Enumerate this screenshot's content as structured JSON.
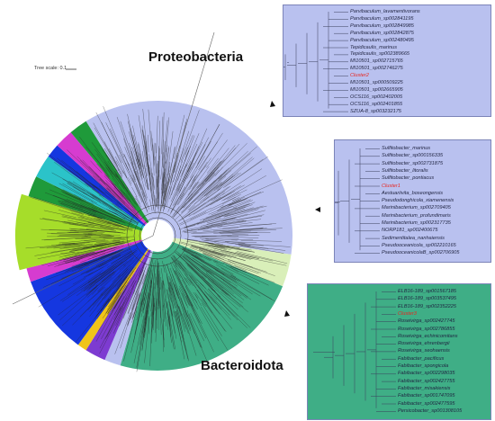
{
  "labels": {
    "top_clade": "Proteobacteria",
    "bottom_clade": "Bacteroidota",
    "tree_scale": "Tree scale: 0.1"
  },
  "colors": {
    "proteobacteria": "#b9c1ef",
    "bacteroidota": "#3fae86",
    "lime": "#a6dd2a",
    "blue": "#1537e0",
    "teal": "#2bc3c9",
    "green": "#1f9a3a",
    "magenta": "#d63cd0",
    "purple": "#7d3bd1",
    "yellow": "#f0c419",
    "pale_green": "#d9efb9",
    "highlight": "#e8261f"
  },
  "panels": {
    "proteobacteria": {
      "color": "#b9c1ef",
      "leaves": [
        {
          "name": "Parvibaculum_lavamentivorans",
          "highlight": false
        },
        {
          "name": "Parvibaculum_sp002841195",
          "highlight": false
        },
        {
          "name": "Parvibaculum_sp002849985",
          "highlight": false
        },
        {
          "name": "Parvibaculum_sp002842875",
          "highlight": false
        },
        {
          "name": "Parvibaculum_sp002480495",
          "highlight": false
        },
        {
          "name": "Tepidicaulis_marinus",
          "highlight": false
        },
        {
          "name": "Tepidicaulis_sp002389665",
          "highlight": false
        },
        {
          "name": "MI10501_sp002715765",
          "highlight": false
        },
        {
          "name": "MI10501_sp002746275",
          "highlight": false
        },
        {
          "name": "Cluster2",
          "highlight": true
        },
        {
          "name": "MI10501_sp000509225",
          "highlight": false
        },
        {
          "name": "MI10501_sp002665905",
          "highlight": false
        },
        {
          "name": "OCS116_sp002402005",
          "highlight": false
        },
        {
          "name": "OCS116_sp002401855",
          "highlight": false
        },
        {
          "name": "SZUA-8_sp003232175",
          "highlight": false
        }
      ]
    },
    "middle": {
      "color": "#b9c1ef",
      "leaves": [
        {
          "name": "Sulfitobacter_marinus",
          "highlight": false
        },
        {
          "name": "Sulfitobacter_sp000156335",
          "highlight": false
        },
        {
          "name": "Sulfitobacter_sp002731875",
          "highlight": false
        },
        {
          "name": "Sulfitobacter_litoralis",
          "highlight": false
        },
        {
          "name": "Sulfitobacter_pontiacus",
          "highlight": false
        },
        {
          "name": "Cluster1",
          "highlight": true
        },
        {
          "name": "Aestuariivita_boseongensis",
          "highlight": false
        },
        {
          "name": "Pseudodonghicola_xiamenensis",
          "highlight": false
        },
        {
          "name": "Marinibacterium_sp002709405",
          "highlight": false
        },
        {
          "name": "Marinibacterium_profundimaris",
          "highlight": false
        },
        {
          "name": "Marinibacterium_sp002317735",
          "highlight": false
        },
        {
          "name": "NORP181_sp002400675",
          "highlight": false
        },
        {
          "name": "Sedimentitalea_nanhaiensis",
          "highlight": false
        },
        {
          "name": "Pseudooceanicola_sp002210165",
          "highlight": false
        },
        {
          "name": "PseudooceanicolaB_sp002706905",
          "highlight": false
        }
      ]
    },
    "bacteroidota": {
      "color": "#3fae86",
      "leaves": [
        {
          "name": "ELB16-189_sp001567185",
          "highlight": false
        },
        {
          "name": "ELB16-189_sp003537495",
          "highlight": false
        },
        {
          "name": "ELB16-189_sp002352225",
          "highlight": false
        },
        {
          "name": "Cluster3",
          "highlight": true
        },
        {
          "name": "Roseivirga_sp002427745",
          "highlight": false
        },
        {
          "name": "Roseivirga_sp002786855",
          "highlight": false
        },
        {
          "name": "Roseivirga_echinicomitans",
          "highlight": false
        },
        {
          "name": "Roseivirga_ehrenbergii",
          "highlight": false
        },
        {
          "name": "Roseivirga_seohaensis",
          "highlight": false
        },
        {
          "name": "Fabibacter_pacificus",
          "highlight": false
        },
        {
          "name": "Fabibacter_spongicola",
          "highlight": false
        },
        {
          "name": "Fabibacter_sp002298035",
          "highlight": false
        },
        {
          "name": "Fabibacter_sp002427755",
          "highlight": false
        },
        {
          "name": "Fabibacter_misakiensis",
          "highlight": false
        },
        {
          "name": "Fabibacter_sp001747095",
          "highlight": false
        },
        {
          "name": "Fabibacter_sp002477595",
          "highlight": false
        },
        {
          "name": "Persicobacter_sp001308105",
          "highlight": false
        }
      ]
    }
  }
}
